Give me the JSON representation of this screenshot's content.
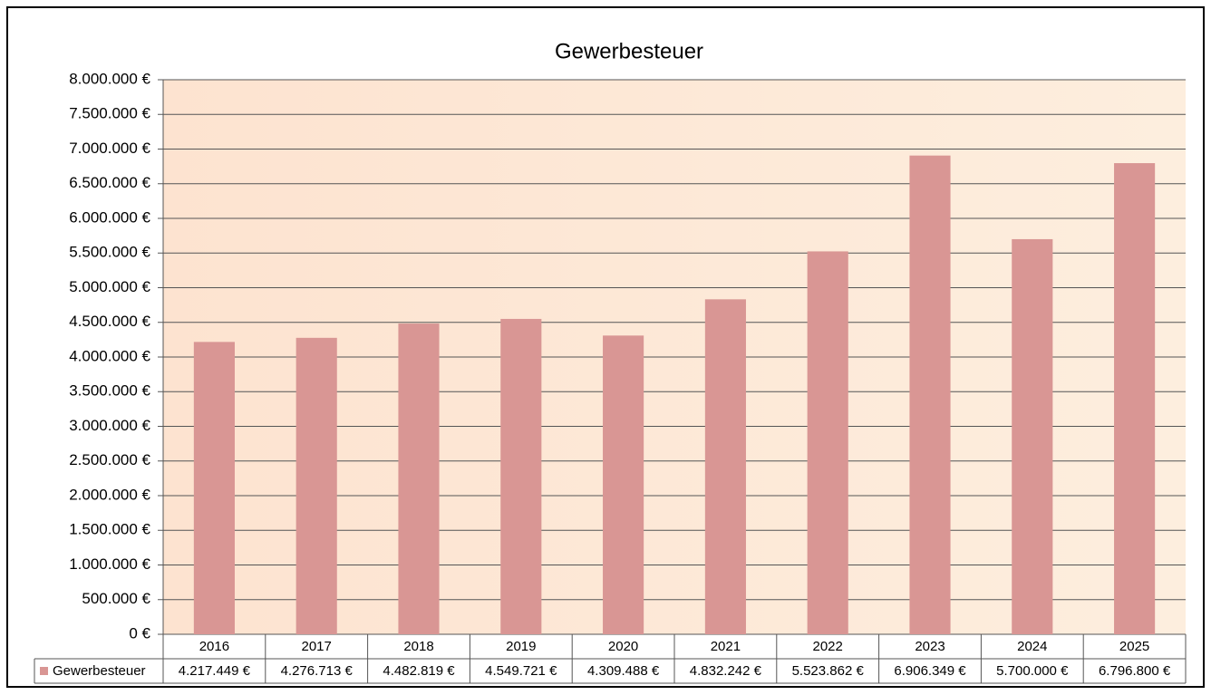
{
  "chart_data": {
    "type": "bar",
    "title": "Gewerbesteuer",
    "categories": [
      "2016",
      "2017",
      "2018",
      "2019",
      "2020",
      "2021",
      "2022",
      "2023",
      "2024",
      "2025"
    ],
    "series": [
      {
        "name": "Gewerbesteuer",
        "color": "#d99694",
        "values": [
          4217449,
          4276713,
          4482819,
          4549721,
          4309488,
          4832242,
          5523862,
          6906349,
          5700000,
          6796800
        ],
        "value_labels": [
          "4.217.449 €",
          "4.276.713 €",
          "4.482.819 €",
          "4.549.721 €",
          "4.309.488 €",
          "4.832.242 €",
          "5.523.862 €",
          "6.906.349 €",
          "5.700.000 €",
          "6.796.800 €"
        ]
      }
    ],
    "ylim": [
      0,
      8000000
    ],
    "yticks": [
      {
        "value": 0,
        "label": "0 €"
      },
      {
        "value": 500000,
        "label": "500.000 €"
      },
      {
        "value": 1000000,
        "label": "1.000.000 €"
      },
      {
        "value": 1500000,
        "label": "1.500.000 €"
      },
      {
        "value": 2000000,
        "label": "2.000.000 €"
      },
      {
        "value": 2500000,
        "label": "2.500.000 €"
      },
      {
        "value": 3000000,
        "label": "3.000.000 €"
      },
      {
        "value": 3500000,
        "label": "3.500.000 €"
      },
      {
        "value": 4000000,
        "label": "4.000.000 €"
      },
      {
        "value": 4500000,
        "label": "4.500.000 €"
      },
      {
        "value": 5000000,
        "label": "5.000.000 €"
      },
      {
        "value": 5500000,
        "label": "5.500.000 €"
      },
      {
        "value": 6000000,
        "label": "6.000.000 €"
      },
      {
        "value": 6500000,
        "label": "6.500.000 €"
      },
      {
        "value": 7000000,
        "label": "7.000.000 €"
      },
      {
        "value": 7500000,
        "label": "7.500.000 €"
      },
      {
        "value": 8000000,
        "label": "8.000.000 €"
      }
    ],
    "grid": true
  }
}
